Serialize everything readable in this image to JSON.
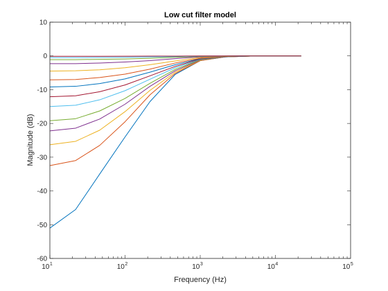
{
  "chart_data": {
    "type": "line",
    "title": "Low cut filter model",
    "xlabel": "Frequency (Hz)",
    "ylabel": "Magnitude (dB)",
    "xscale": "log",
    "xlim": [
      10,
      100000
    ],
    "ylim": [
      -60,
      10
    ],
    "x_ticks": [
      {
        "base": "10",
        "exp": "1"
      },
      {
        "base": "10",
        "exp": "2"
      },
      {
        "base": "10",
        "exp": "3"
      },
      {
        "base": "10",
        "exp": "4"
      },
      {
        "base": "10",
        "exp": "5"
      }
    ],
    "y_ticks": [
      "10",
      "0",
      "-10",
      "-20",
      "-30",
      "-40",
      "-50",
      "-60"
    ],
    "y_tick_values": [
      10,
      0,
      -10,
      -20,
      -30,
      -40,
      -50,
      -60
    ],
    "grid": false,
    "box": true,
    "x": [
      10,
      22,
      46,
      100,
      215,
      464,
      1000,
      2154,
      4642,
      10000,
      22000
    ],
    "series": [
      {
        "color": "#0072BD",
        "values": [
          -51,
          -45.5,
          -35,
          -24,
          -13.5,
          -5.5,
          -1.4,
          -0.3,
          -0.05,
          0,
          0
        ]
      },
      {
        "color": "#D95319",
        "values": [
          -32.5,
          -31,
          -26.5,
          -19.5,
          -11.5,
          -5.2,
          -1.4,
          -0.3,
          -0.05,
          0,
          0
        ]
      },
      {
        "color": "#EDB120",
        "values": [
          -26.3,
          -25.3,
          -22,
          -16.5,
          -10.2,
          -4.8,
          -1.3,
          -0.3,
          -0.05,
          0,
          0
        ]
      },
      {
        "color": "#7E2F8E",
        "values": [
          -22.2,
          -21.4,
          -18.7,
          -14.3,
          -9,
          -4.4,
          -1.2,
          -0.3,
          -0.05,
          0,
          0
        ]
      },
      {
        "color": "#77AC30",
        "values": [
          -19.2,
          -18.6,
          -16.3,
          -12.6,
          -8.1,
          -4,
          -1.1,
          -0.25,
          -0.05,
          0,
          0
        ]
      },
      {
        "color": "#4DBEEE",
        "values": [
          -15,
          -14.6,
          -13,
          -10.3,
          -6.9,
          -3.5,
          -1,
          -0.2,
          -0.04,
          0,
          0
        ]
      },
      {
        "color": "#A2142F",
        "values": [
          -12.1,
          -11.8,
          -10.6,
          -8.6,
          -5.9,
          -3.1,
          -0.9,
          -0.2,
          -0.04,
          0,
          0
        ]
      },
      {
        "color": "#0072BD",
        "values": [
          -9.2,
          -9,
          -8.2,
          -6.8,
          -4.8,
          -2.6,
          -0.8,
          -0.2,
          -0.03,
          0,
          0
        ]
      },
      {
        "color": "#D95319",
        "values": [
          -7.1,
          -7,
          -6.4,
          -5.4,
          -3.9,
          -2.1,
          -0.7,
          -0.15,
          -0.03,
          0,
          0
        ]
      },
      {
        "color": "#EDB120",
        "values": [
          -4.5,
          -4.4,
          -4.1,
          -3.5,
          -2.6,
          -1.5,
          -0.5,
          -0.1,
          -0.02,
          0,
          0
        ]
      },
      {
        "color": "#7E2F8E",
        "values": [
          -2.3,
          -2.3,
          -2.1,
          -1.8,
          -1.4,
          -0.8,
          -0.3,
          -0.07,
          -0.01,
          0,
          0
        ]
      },
      {
        "color": "#77AC30",
        "values": [
          -1.1,
          -1.1,
          -1,
          -0.9,
          -0.7,
          -0.4,
          -0.15,
          -0.04,
          -0.01,
          0,
          0
        ]
      },
      {
        "color": "#4DBEEE",
        "values": [
          -0.5,
          -0.5,
          -0.45,
          -0.4,
          -0.3,
          -0.2,
          -0.08,
          -0.02,
          0,
          0,
          0
        ]
      },
      {
        "color": "#A2142F",
        "values": [
          -0.1,
          -0.1,
          -0.1,
          -0.09,
          -0.07,
          -0.05,
          -0.02,
          0,
          0,
          0,
          0
        ]
      }
    ]
  }
}
